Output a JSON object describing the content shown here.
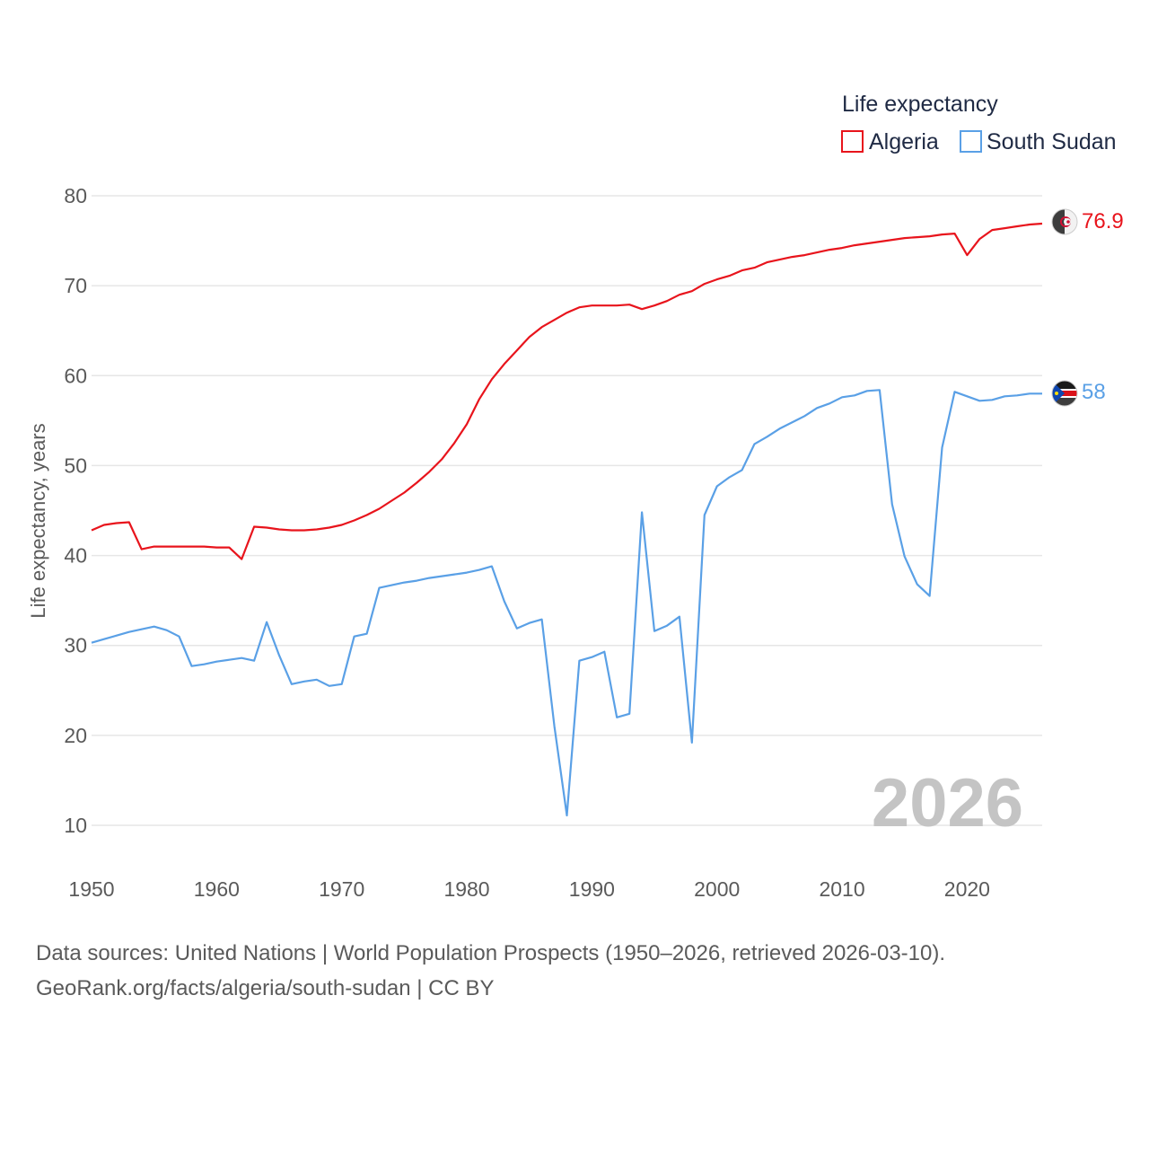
{
  "chart_data": {
    "type": "line",
    "title": "",
    "legend_title": "Life expectancy",
    "ylabel": "Life expectancy, years",
    "xlabel": "",
    "xlim": [
      1950,
      2026
    ],
    "ylim": [
      10,
      80
    ],
    "x_ticks": [
      "1950",
      "1960",
      "1970",
      "1980",
      "1990",
      "2000",
      "2010",
      "2020"
    ],
    "y_ticks": [
      "10",
      "20",
      "30",
      "40",
      "50",
      "60",
      "70",
      "80"
    ],
    "current_year": "2026",
    "x": [
      1950,
      1951,
      1952,
      1953,
      1954,
      1955,
      1956,
      1957,
      1958,
      1959,
      1960,
      1961,
      1962,
      1963,
      1964,
      1965,
      1966,
      1967,
      1968,
      1969,
      1970,
      1971,
      1972,
      1973,
      1974,
      1975,
      1976,
      1977,
      1978,
      1979,
      1980,
      1981,
      1982,
      1983,
      1984,
      1985,
      1986,
      1987,
      1988,
      1989,
      1990,
      1991,
      1992,
      1993,
      1994,
      1995,
      1996,
      1997,
      1998,
      1999,
      2000,
      2001,
      2002,
      2003,
      2004,
      2005,
      2006,
      2007,
      2008,
      2009,
      2010,
      2011,
      2012,
      2013,
      2014,
      2015,
      2016,
      2017,
      2018,
      2019,
      2020,
      2021,
      2022,
      2023,
      2024,
      2025,
      2026
    ],
    "series": [
      {
        "name": "Algeria",
        "color": "#e8141c",
        "end_label": "76.9",
        "flag": "algeria-flag-icon",
        "values": [
          42.8,
          43.4,
          43.6,
          43.7,
          40.7,
          41.0,
          41.0,
          41.0,
          41.0,
          41.0,
          40.9,
          40.9,
          39.6,
          43.2,
          43.1,
          42.9,
          42.8,
          42.8,
          42.9,
          43.1,
          43.4,
          43.9,
          44.5,
          45.2,
          46.1,
          47.0,
          48.1,
          49.3,
          50.7,
          52.5,
          54.6,
          57.4,
          59.6,
          61.3,
          62.8,
          64.3,
          65.4,
          66.2,
          67.0,
          67.6,
          67.8,
          67.8,
          67.8,
          67.9,
          67.4,
          67.8,
          68.3,
          69.0,
          69.4,
          70.2,
          70.7,
          71.1,
          71.7,
          72.0,
          72.6,
          72.9,
          73.2,
          73.4,
          73.7,
          74.0,
          74.2,
          74.5,
          74.7,
          74.9,
          75.1,
          75.3,
          75.4,
          75.5,
          75.7,
          75.8,
          73.4,
          75.2,
          76.2,
          76.4,
          76.6,
          76.8,
          76.9
        ]
      },
      {
        "name": "South Sudan",
        "color": "#5aa0e6",
        "end_label": "58",
        "flag": "south-sudan-flag-icon",
        "values": [
          30.3,
          30.7,
          31.1,
          31.5,
          31.8,
          32.1,
          31.7,
          31.0,
          27.7,
          27.9,
          28.2,
          28.4,
          28.6,
          28.3,
          32.6,
          28.9,
          25.7,
          26.0,
          26.2,
          25.5,
          25.7,
          31.0,
          31.3,
          36.4,
          36.7,
          37.0,
          37.2,
          37.5,
          37.7,
          37.9,
          38.1,
          38.4,
          38.8,
          34.9,
          31.9,
          32.5,
          32.9,
          21.0,
          11.1,
          28.3,
          28.7,
          29.3,
          22.0,
          22.4,
          44.8,
          31.6,
          32.2,
          33.2,
          19.2,
          44.5,
          47.7,
          48.7,
          49.5,
          52.4,
          53.2,
          54.1,
          54.8,
          55.5,
          56.4,
          56.9,
          57.6,
          57.8,
          58.3,
          58.4,
          45.7,
          39.9,
          36.8,
          35.5,
          52.0,
          58.2,
          57.7,
          57.2,
          57.3,
          57.7,
          57.8,
          58.0,
          58.0
        ]
      }
    ]
  },
  "source": {
    "line1": "Data sources: United Nations | World Population Prospects (1950–2026, retrieved 2026-03-10).",
    "line2": "GeoRank.org/facts/algeria/south-sudan | CC BY"
  }
}
